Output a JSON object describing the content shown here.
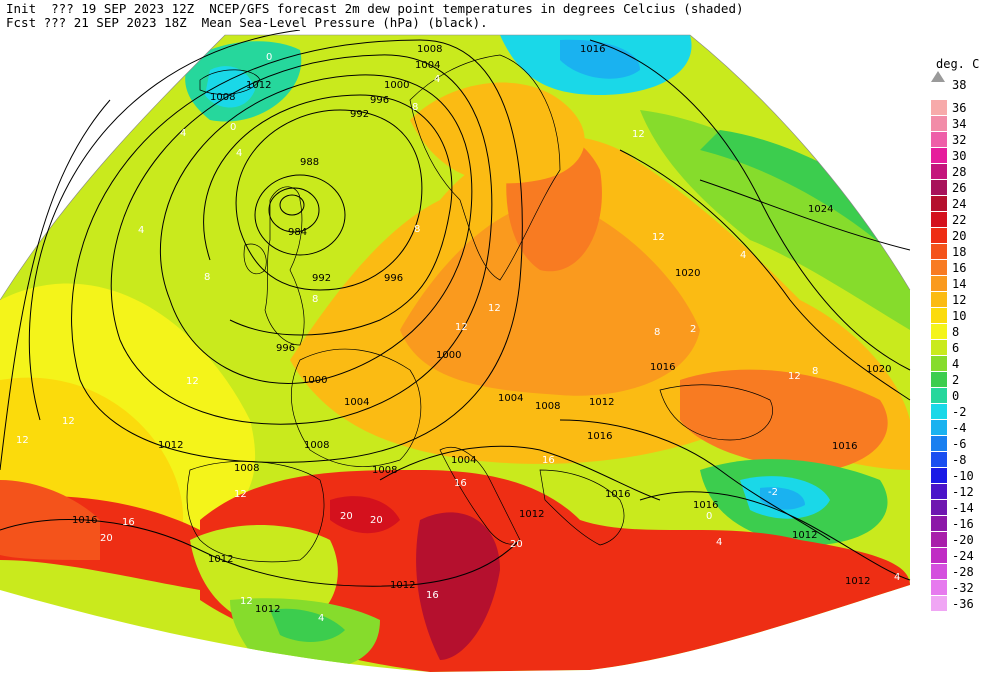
{
  "header": {
    "line1": "Init  ??? 19 SEP 2023 12Z  NCEP/GFS forecast 2m dew point temperatures in degrees Celcius (shaded)",
    "line2": "Fcst ??? 21 SEP 2023 18Z  Mean Sea-Level Pressure (hPa) (black)."
  },
  "legend": {
    "title": "deg. C",
    "top_value": "38",
    "entries": [
      {
        "label": "36",
        "color": "#f7aaaa"
      },
      {
        "label": "34",
        "color": "#f28ca8"
      },
      {
        "label": "32",
        "color": "#ee5fa8"
      },
      {
        "label": "30",
        "color": "#e61d9c"
      },
      {
        "label": "28",
        "color": "#c4157c"
      },
      {
        "label": "26",
        "color": "#a8125a"
      },
      {
        "label": "24",
        "color": "#b5102e"
      },
      {
        "label": "22",
        "color": "#d4111d"
      },
      {
        "label": "20",
        "color": "#ee2e14"
      },
      {
        "label": "18",
        "color": "#f4531b"
      },
      {
        "label": "16",
        "color": "#f87b22"
      },
      {
        "label": "14",
        "color": "#fa9a1e"
      },
      {
        "label": "12",
        "color": "#fbbb13"
      },
      {
        "label": "10",
        "color": "#fbdb0c"
      },
      {
        "label": "8",
        "color": "#f4f41a"
      },
      {
        "label": "6",
        "color": "#c9ea1d"
      },
      {
        "label": "4",
        "color": "#86dc2c"
      },
      {
        "label": "2",
        "color": "#3ccd4e"
      },
      {
        "label": "0",
        "color": "#26d79c"
      },
      {
        "label": "-2",
        "color": "#1ad8e8"
      },
      {
        "label": "-4",
        "color": "#1ab2f0"
      },
      {
        "label": "-6",
        "color": "#1a7ff0"
      },
      {
        "label": "-8",
        "color": "#1a4ef0"
      },
      {
        "label": "-10",
        "color": "#1a1ae6"
      },
      {
        "label": "-12",
        "color": "#4b14c9"
      },
      {
        "label": "-14",
        "color": "#6e17b0"
      },
      {
        "label": "-16",
        "color": "#8c18a8"
      },
      {
        "label": "-20",
        "color": "#a81eaa"
      },
      {
        "label": "-24",
        "color": "#c02cc4"
      },
      {
        "label": "-28",
        "color": "#d450de"
      },
      {
        "label": "-32",
        "color": "#e67aee"
      },
      {
        "label": "-36",
        "color": "#f0a6f4"
      }
    ]
  },
  "map": {
    "isobar_labels": [
      "1008",
      "1004",
      "1016",
      "1000",
      "996",
      "992",
      "988",
      "984",
      "992",
      "996",
      "1012",
      "1008",
      "1024",
      "1020",
      "1016",
      "1020",
      "996",
      "1000",
      "1004",
      "1000",
      "1004",
      "1008",
      "1012",
      "1016",
      "1016",
      "1016",
      "1004",
      "1008",
      "1012",
      "1008",
      "1008",
      "1016",
      "1012",
      "1016",
      "1012",
      "1012",
      "1012",
      "1012",
      "1012"
    ],
    "dew_labels": [
      "0",
      "4",
      "0",
      "4",
      "4",
      "8",
      "8",
      "12",
      "12",
      "12",
      "16",
      "20",
      "20",
      "20",
      "12",
      "12",
      "4",
      "8",
      "8",
      "12",
      "12",
      "16",
      "4",
      "4",
      "2",
      "0",
      "-2",
      "4",
      "8",
      "12",
      "16",
      "20",
      "16",
      "12",
      "8",
      "12",
      "4"
    ]
  }
}
